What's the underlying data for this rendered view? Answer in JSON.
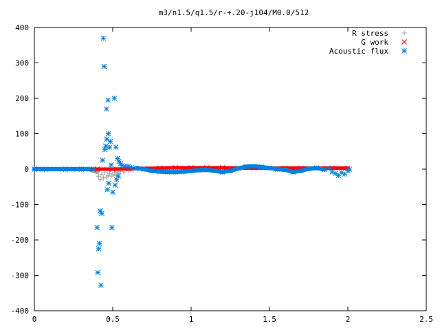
{
  "chart_data": {
    "type": "scatter",
    "title": "m3/n1.5/q1.5/r-+.20-j104/M0.0/512",
    "xlabel": "",
    "ylabel": "",
    "xlim": [
      0,
      2.5
    ],
    "ylim": [
      -400,
      400
    ],
    "x_ticks": [
      {
        "value": 0,
        "label": "0"
      },
      {
        "value": 0.5,
        "label": "0.5"
      },
      {
        "value": 1,
        "label": "1"
      },
      {
        "value": 1.5,
        "label": "1.5"
      },
      {
        "value": 2,
        "label": "2"
      },
      {
        "value": 2.5,
        "label": "2.5"
      }
    ],
    "y_ticks": [
      {
        "value": -400,
        "label": "-400"
      },
      {
        "value": -300,
        "label": "-300"
      },
      {
        "value": -200,
        "label": "-200"
      },
      {
        "value": -100,
        "label": "-100"
      },
      {
        "value": 0,
        "label": "0"
      },
      {
        "value": 100,
        "label": "100"
      },
      {
        "value": 200,
        "label": "200"
      },
      {
        "value": 300,
        "label": "300"
      },
      {
        "value": 400,
        "label": "400"
      }
    ],
    "grid": false,
    "legend_position": "top-right",
    "series": [
      {
        "name": "R stress",
        "marker": "plus",
        "color": "#a0a0a0",
        "points": [
          [
            0.0,
            0
          ],
          [
            0.05,
            0
          ],
          [
            0.1,
            0
          ],
          [
            0.15,
            0
          ],
          [
            0.2,
            0
          ],
          [
            0.25,
            0
          ],
          [
            0.3,
            0
          ],
          [
            0.35,
            0
          ],
          [
            0.4,
            -8
          ],
          [
            0.41,
            -20
          ],
          [
            0.42,
            -30
          ],
          [
            0.43,
            -15
          ],
          [
            0.44,
            -25
          ],
          [
            0.45,
            -10
          ],
          [
            0.46,
            -22
          ],
          [
            0.47,
            -18
          ],
          [
            0.48,
            -12
          ],
          [
            0.49,
            -20
          ],
          [
            0.5,
            -15
          ],
          [
            0.51,
            -10
          ],
          [
            0.52,
            -18
          ],
          [
            0.53,
            -8
          ],
          [
            0.54,
            -12
          ],
          [
            0.55,
            -6
          ],
          [
            0.57,
            -8
          ],
          [
            0.6,
            -5
          ],
          [
            0.63,
            -3
          ],
          [
            0.66,
            -2
          ],
          [
            0.7,
            -1
          ],
          [
            0.75,
            0
          ]
        ]
      },
      {
        "name": "G work",
        "marker": "cross",
        "color": "#ff0000",
        "points": [
          [
            0.0,
            0
          ],
          [
            0.1,
            0
          ],
          [
            0.2,
            0
          ],
          [
            0.3,
            0
          ],
          [
            0.4,
            0
          ],
          [
            0.5,
            0
          ],
          [
            0.6,
            1
          ],
          [
            0.7,
            2
          ],
          [
            0.8,
            3
          ],
          [
            0.9,
            4
          ],
          [
            1.0,
            4
          ],
          [
            1.1,
            4
          ],
          [
            1.2,
            4
          ],
          [
            1.3,
            3
          ],
          [
            1.4,
            3
          ],
          [
            1.5,
            3
          ],
          [
            1.6,
            3
          ],
          [
            1.7,
            3
          ],
          [
            1.8,
            3
          ],
          [
            1.9,
            3
          ],
          [
            2.0,
            3
          ]
        ]
      },
      {
        "name": "Acoustic flux",
        "marker": "star",
        "color": "#0080e0",
        "points": [
          [
            0.0,
            0
          ],
          [
            0.05,
            0
          ],
          [
            0.1,
            0
          ],
          [
            0.15,
            0
          ],
          [
            0.2,
            0
          ],
          [
            0.25,
            0
          ],
          [
            0.3,
            0
          ],
          [
            0.35,
            0
          ],
          [
            0.38,
            0
          ],
          [
            0.4,
            -165
          ],
          [
            0.405,
            -292
          ],
          [
            0.41,
            -225
          ],
          [
            0.415,
            -210
          ],
          [
            0.42,
            -118
          ],
          [
            0.425,
            -328
          ],
          [
            0.43,
            -125
          ],
          [
            0.435,
            25
          ],
          [
            0.44,
            370
          ],
          [
            0.445,
            290
          ],
          [
            0.45,
            55
          ],
          [
            0.455,
            65
          ],
          [
            0.46,
            170
          ],
          [
            0.462,
            85
          ],
          [
            0.465,
            -58
          ],
          [
            0.47,
            195
          ],
          [
            0.472,
            100
          ],
          [
            0.475,
            -40
          ],
          [
            0.48,
            62
          ],
          [
            0.485,
            78
          ],
          [
            0.49,
            12
          ],
          [
            0.495,
            -165
          ],
          [
            0.5,
            -65
          ],
          [
            0.51,
            200
          ],
          [
            0.515,
            -45
          ],
          [
            0.52,
            62
          ],
          [
            0.525,
            -30
          ],
          [
            0.53,
            30
          ],
          [
            0.535,
            -20
          ],
          [
            0.54,
            22
          ],
          [
            0.55,
            15
          ],
          [
            0.56,
            10
          ],
          [
            0.58,
            8
          ],
          [
            0.6,
            8
          ],
          [
            0.62,
            5
          ],
          [
            0.65,
            3
          ],
          [
            0.7,
            0
          ],
          [
            0.75,
            -5
          ],
          [
            0.8,
            -7
          ],
          [
            0.85,
            -8
          ],
          [
            0.9,
            -8
          ],
          [
            0.95,
            -7
          ],
          [
            1.0,
            -5
          ],
          [
            1.05,
            -3
          ],
          [
            1.1,
            -2
          ],
          [
            1.15,
            -5
          ],
          [
            1.2,
            -8
          ],
          [
            1.25,
            -5
          ],
          [
            1.3,
            2
          ],
          [
            1.35,
            7
          ],
          [
            1.4,
            8
          ],
          [
            1.45,
            6
          ],
          [
            1.5,
            3
          ],
          [
            1.55,
            0
          ],
          [
            1.6,
            -2
          ],
          [
            1.65,
            -8
          ],
          [
            1.7,
            -5
          ],
          [
            1.75,
            1
          ],
          [
            1.8,
            3
          ],
          [
            1.85,
            -1
          ],
          [
            1.88,
            2
          ],
          [
            1.9,
            -8
          ],
          [
            1.92,
            -12
          ],
          [
            1.94,
            -18
          ],
          [
            1.96,
            -10
          ],
          [
            1.98,
            -14
          ],
          [
            2.0,
            -5
          ],
          [
            2.01,
            0
          ]
        ]
      }
    ]
  }
}
